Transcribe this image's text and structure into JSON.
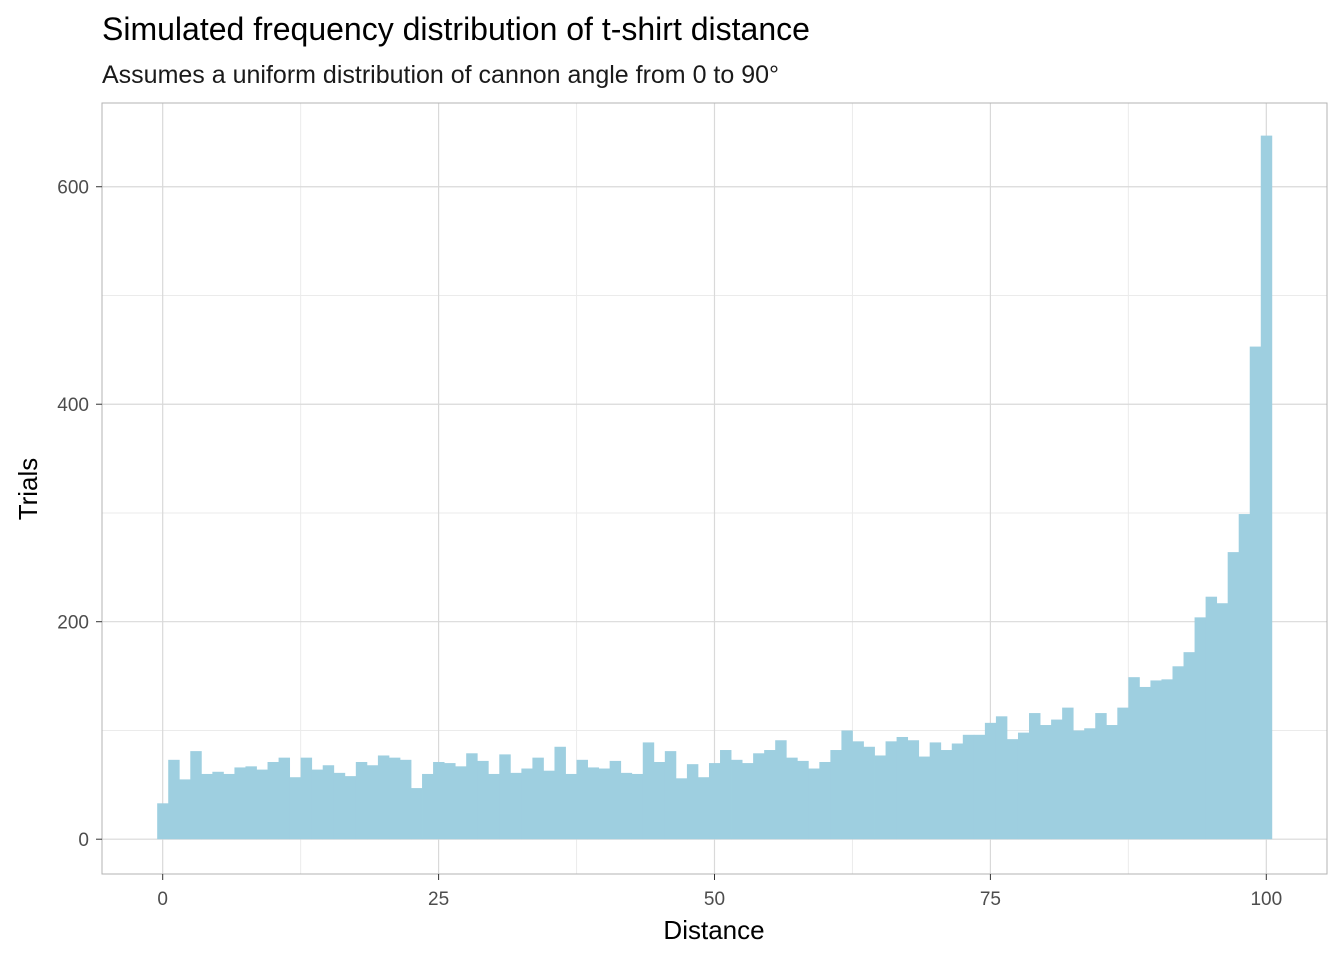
{
  "chart_data": {
    "type": "bar",
    "title": "Simulated frequency distribution of t-shirt distance",
    "subtitle": "Assumes a uniform distribution of cannon angle from 0 to 90°",
    "xlabel": "Distance",
    "ylabel": "Trials",
    "xlim": [
      -5.5,
      105.5
    ],
    "ylim": [
      -32,
      677
    ],
    "x_ticks": [
      0,
      25,
      50,
      75,
      100
    ],
    "y_ticks": [
      0,
      200,
      400,
      600
    ],
    "grid": true,
    "bar_color": "#9ecfe0",
    "bin_width": 1,
    "bin_start": -0.5,
    "values": [
      33,
      73,
      55,
      81,
      60,
      62,
      60,
      66,
      67,
      64,
      71,
      75,
      57,
      75,
      64,
      68,
      61,
      58,
      71,
      68,
      77,
      75,
      73,
      47,
      60,
      71,
      70,
      67,
      79,
      72,
      60,
      78,
      61,
      65,
      75,
      63,
      85,
      60,
      73,
      66,
      65,
      72,
      61,
      60,
      89,
      71,
      81,
      56,
      69,
      57,
      70,
      82,
      73,
      70,
      79,
      82,
      91,
      75,
      72,
      65,
      71,
      82,
      100,
      90,
      85,
      77,
      90,
      94,
      91,
      76,
      89,
      82,
      88,
      96,
      96,
      107,
      113,
      92,
      98,
      116,
      105,
      110,
      121,
      100,
      102,
      116,
      105,
      121,
      149,
      140,
      146,
      147,
      159,
      172,
      204,
      223,
      217,
      264,
      299,
      453,
      647
    ]
  },
  "colors": {
    "panel_border": "#b3b3b3",
    "grid_major": "#d9d9d9",
    "grid_minor": "#ebebeb"
  }
}
